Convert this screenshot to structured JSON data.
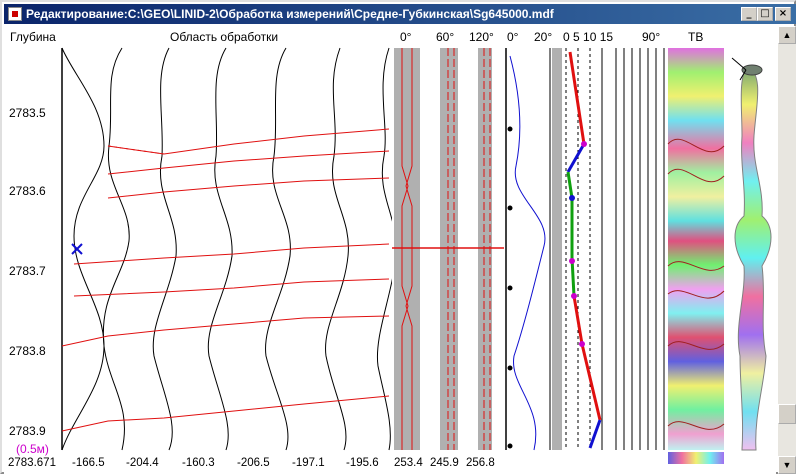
{
  "window": {
    "title": "Редактирование:C:\\GEO\\LINID-2\\Обработка измерений\\Средне-Губкинская\\Sg645000.mdf",
    "minimize_glyph": "_",
    "maximize_glyph": "□",
    "close_glyph": "×"
  },
  "headers": {
    "depth": "Глубина",
    "processing_area": "Область обработки",
    "angle_0": "0°",
    "angle_60": "60°",
    "angle_120": "120°",
    "scale_0": "0°",
    "scale_20": "20°",
    "scale_nums": "0  5  10 15",
    "angle_90": "90°",
    "tv": "ТВ"
  },
  "depths": [
    "2783.5",
    "2783.6",
    "2783.7",
    "2783.8",
    "2783.9"
  ],
  "scale_label": "(0.5м)",
  "footer_values": [
    "2783.671",
    "-166.5",
    "-204.4",
    "-160.3",
    "-206.5",
    "-197.1",
    "-195.6",
    "253.4",
    "245.9",
    "256.8"
  ],
  "colors": {
    "titlebar_start": "#0a246a",
    "titlebar_end": "#3a6ea5",
    "curve_black": "#000000",
    "pick_line_red": "#e01010",
    "marker_blue": "#1010d0",
    "scale_magenta": "#cc00cc"
  },
  "icons": {
    "app": "document-icon",
    "cursor": "cross-marker-icon",
    "scroll_up": "arrow-up-icon",
    "scroll_down": "arrow-down-icon"
  },
  "scrollbar": {
    "up_glyph": "▲",
    "down_glyph": "▼"
  }
}
